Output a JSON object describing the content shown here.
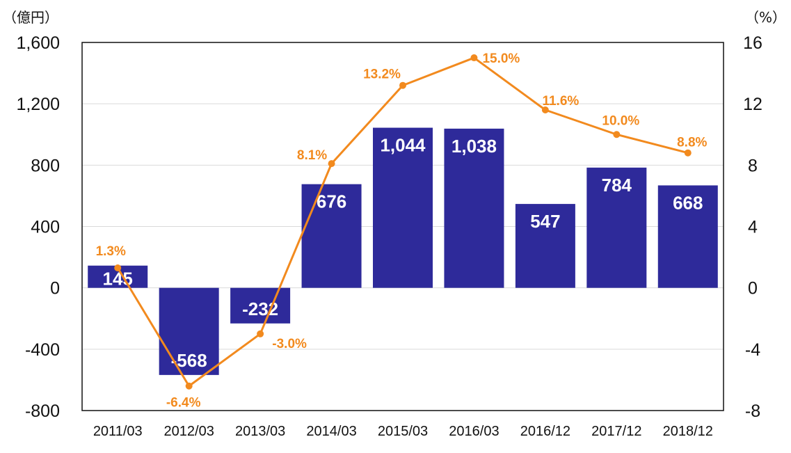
{
  "chart_data": {
    "type": "bar",
    "categories": [
      "2011/03",
      "2012/03",
      "2013/03",
      "2014/03",
      "2015/03",
      "2016/03",
      "2016/12",
      "2017/12",
      "2018/12"
    ],
    "left_axis": {
      "unit_label": "（億円）",
      "ylim": [
        -800,
        1600
      ],
      "ticks": [
        1600,
        1200,
        800,
        400,
        0,
        -400,
        -800
      ],
      "tick_labels": [
        "1,600",
        "1,200",
        "800",
        "400",
        "0",
        "-400",
        "-800"
      ]
    },
    "right_axis": {
      "unit_label": "（%）",
      "ylim": [
        -8,
        16
      ],
      "ticks": [
        16,
        12,
        8,
        4,
        0,
        -4,
        -8
      ],
      "tick_labels": [
        "16",
        "12",
        "8",
        "4",
        "0",
        "-4",
        "-8"
      ]
    },
    "series": [
      {
        "type": "bar",
        "axis": "left",
        "color": "#2e2a9a",
        "values": [
          145,
          -568,
          -232,
          676,
          1044,
          1038,
          547,
          784,
          668
        ],
        "labels": [
          "145",
          "-568",
          "-232",
          "676",
          "1,044",
          "1,038",
          "547",
          "784",
          "668"
        ]
      },
      {
        "type": "line",
        "axis": "right",
        "color": "#f28a1e",
        "values": [
          1.3,
          -6.4,
          -3.0,
          8.1,
          13.2,
          15.0,
          11.6,
          10.0,
          8.8
        ],
        "labels": [
          "1.3%",
          "-6.4%",
          "-3.0%",
          "8.1%",
          "13.2%",
          "15.0%",
          "11.6%",
          "10.0%",
          "8.8%"
        ]
      }
    ],
    "grid": true,
    "legend": "none"
  }
}
